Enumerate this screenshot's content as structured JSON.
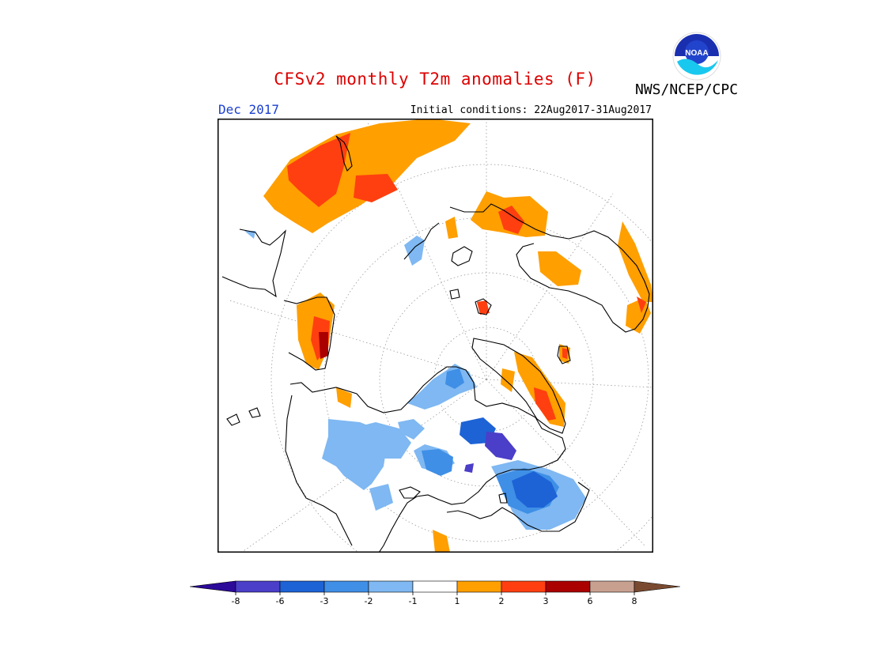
{
  "header": {
    "title": "CFSv2 monthly T2m anomalies (F)",
    "agency": "NWS/NCEP/CPC",
    "logo_text": "NOAA",
    "month": "Dec 2017",
    "initial_conditions": "Initial conditions: 22Aug2017-31Aug2017"
  },
  "colors": {
    "title": "#dd0000",
    "month": "#1b3fd0",
    "bins": [
      "#2c0a9a",
      "#4b3ec8",
      "#1d63d6",
      "#3f8fe6",
      "#7fb8f2",
      "#ffffff",
      "#ff9f00",
      "#ff3f10",
      "#aa0000",
      "#c8a090",
      "#7a4a30"
    ]
  },
  "legend": {
    "ticks": [
      "-8",
      "-6",
      "-3",
      "-2",
      "-1",
      "1",
      "2",
      "3",
      "6",
      "8"
    ]
  }
}
